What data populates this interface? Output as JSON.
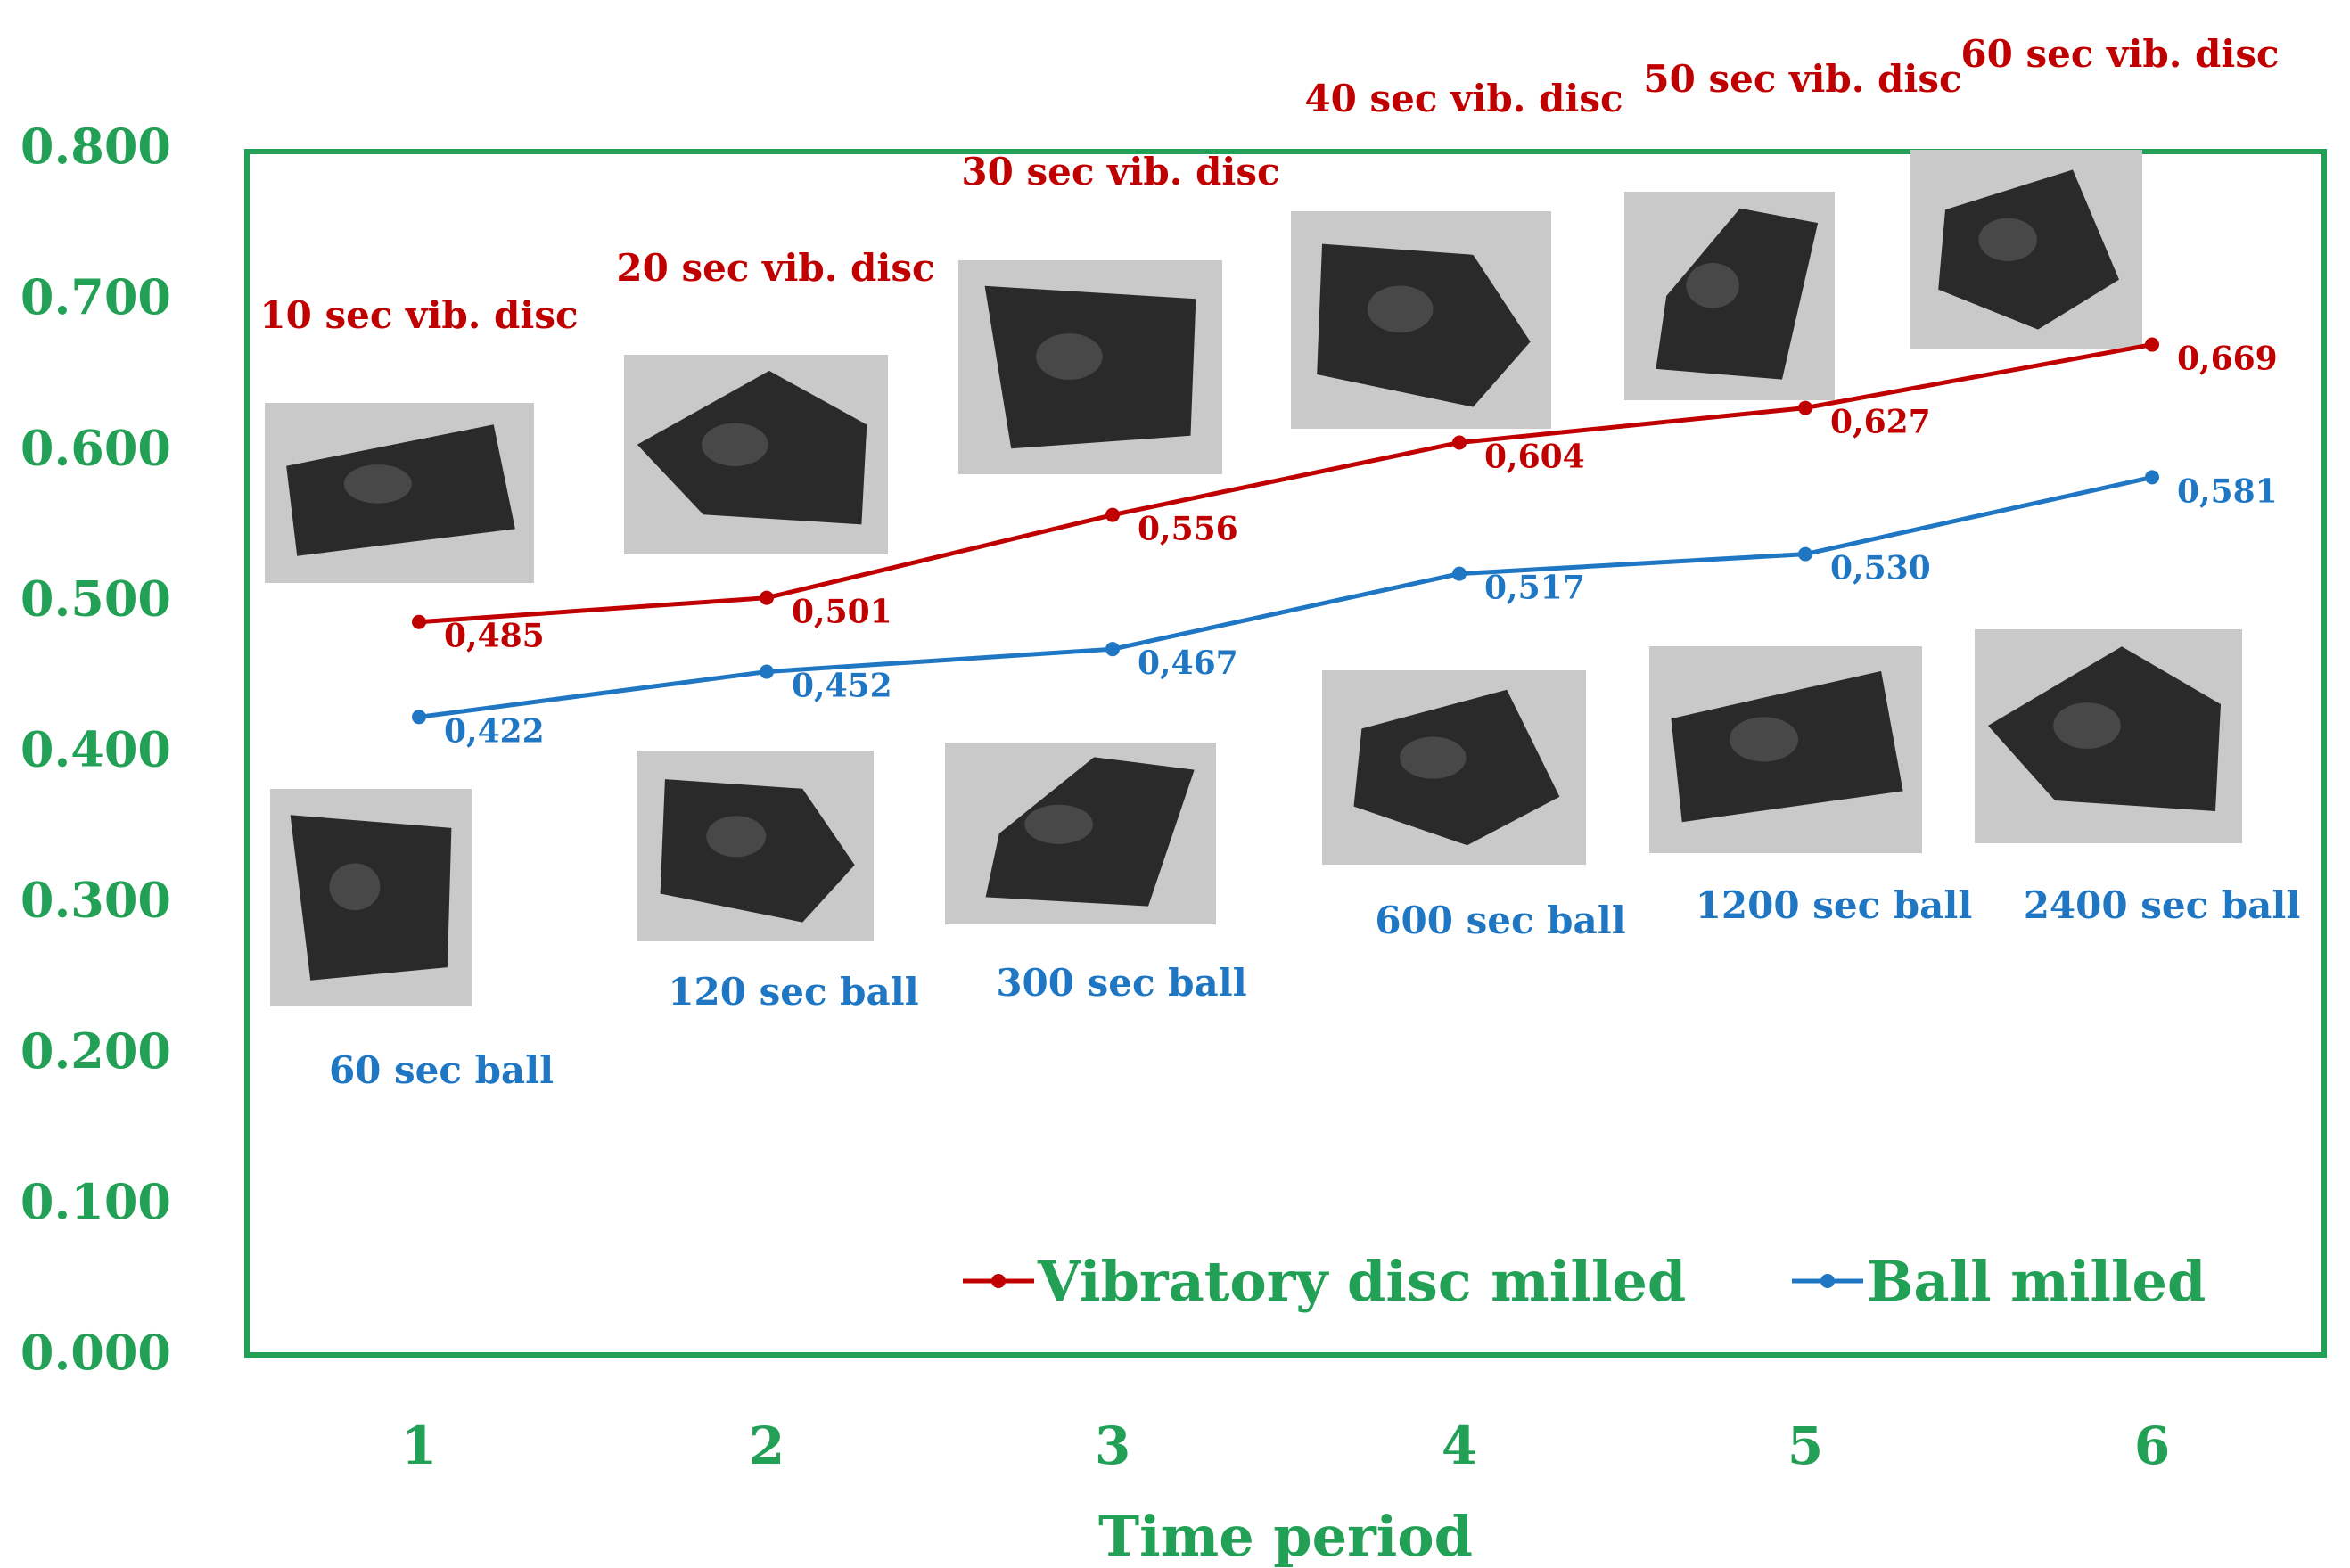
{
  "chart_data": {
    "type": "line",
    "title": "",
    "xlabel": "Time period",
    "ylabel": "",
    "categories": [
      "1",
      "2",
      "3",
      "4",
      "5",
      "6"
    ],
    "ylim": [
      0,
      0.8
    ],
    "yticks": [
      "0.000",
      "0.100",
      "0.200",
      "0.300",
      "0.400",
      "0.500",
      "0.600",
      "0.700",
      "0.800"
    ],
    "grid": false,
    "legend_position": "bottom-right",
    "series": [
      {
        "name": "Vibratory disc  milled",
        "color": "#c00000",
        "values": [
          0.485,
          0.501,
          0.556,
          0.604,
          0.627,
          0.669
        ],
        "labels": [
          "0,485",
          "0,501",
          "0,556",
          "0,604",
          "0,627",
          "0,669"
        ],
        "point_annotations": [
          "10 sec vib. disc",
          "20 sec vib. disc",
          "30 sec vib. disc",
          "40 sec vib. disc",
          "50 sec vib. disc",
          "60 sec vib. disc"
        ]
      },
      {
        "name": "Ball milled",
        "color": "#1f77c4",
        "values": [
          0.422,
          0.452,
          0.467,
          0.517,
          0.53,
          0.581
        ],
        "labels": [
          "0,422",
          "0,452",
          "0,467",
          "0,517",
          "0,530",
          "0,581"
        ],
        "point_annotations": [
          "60 sec ball",
          "120 sec ball",
          "300 sec ball",
          "600 sec ball",
          "1200 sec ball",
          "2400 sec ball"
        ]
      }
    ]
  },
  "colors": {
    "axis_text": "#22a055",
    "frame": "#22a055",
    "legend_text": "#22a055"
  }
}
